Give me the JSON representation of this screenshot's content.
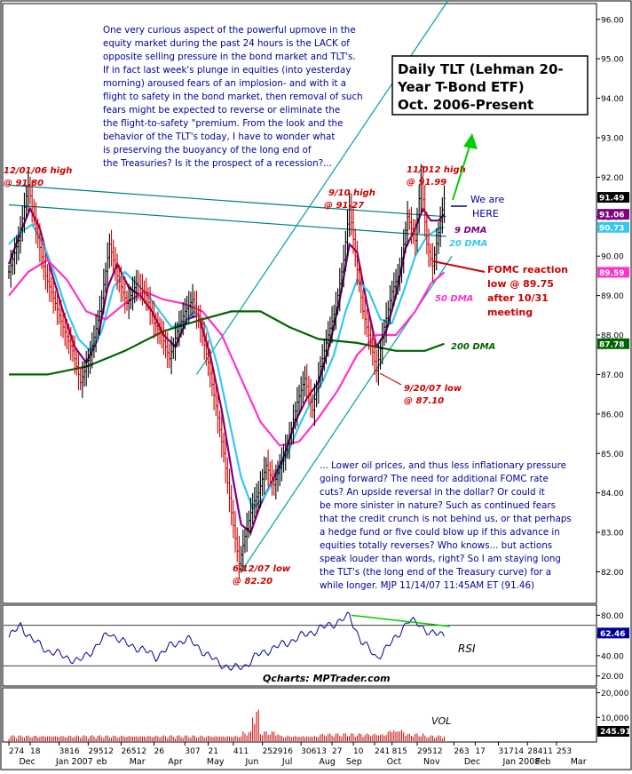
{
  "chart_data": {
    "type": "line",
    "title_box": {
      "lines": [
        "Daily TLT (Lehman 20-",
        "Year T-Bond ETF)",
        "Oct. 2006-Present"
      ]
    },
    "commentary_top": [
      "One very curious aspect of the powerful upmove in the",
      "equity market during the past 24 hours is the LACK of",
      "opposite selling pressure in the bond market and TLT's.",
      "If in fact last week's plunge in equities (into yesterday",
      "morning) aroused fears of an implosion- and with it a",
      "flight to safety in the bond market, then removal of such",
      "fears might be expected to reverse or eliminate the",
      "the flight-to-safety \"premium. From the look and the",
      "behavior of the TLT's today, I have to wonder what",
      "is preserving the buoyancy of the long end of",
      "the Treasuries? Is it the prospect of a recession?..."
    ],
    "commentary_bottom": [
      "... Lower oil prices, and thus less inflationary pressure",
      "going forward? The need for additional FOMC rate",
      "cuts?  An upside reversal in the dollar? Or could it",
      "be more sinister in nature? Such as continued fears",
      "that the credit crunch is not behind us, or that perhaps",
      "a hedge fund or five could blow up if this advance in",
      "equities totally reverses?  Who knows... but actions",
      "speak louder than words, right?  So I am staying long",
      "the TLT's (the long end of the Treasury curve) for a",
      "while longer.  MJP  11/14/07 11:45AM ET  (91.46)"
    ],
    "annotations": {
      "high_1201": [
        "12/01/06 high",
        "@ 91.80"
      ],
      "high_910": [
        "9/10 high",
        "@ 91.27"
      ],
      "high_1112": [
        "11/012 high",
        "@ 91.99"
      ],
      "we_are_here": [
        "We are",
        "HERE"
      ],
      "low_612": [
        "6/12/07 low",
        "@ 82.20"
      ],
      "low_920": [
        "9/20/07 low",
        "@ 87.10"
      ],
      "fomc": [
        "FOMC reaction",
        "low @ 89.75",
        "after 10/31",
        "meeting"
      ],
      "dma9": "9 DMA",
      "dma20": "20 DMA",
      "dma50": "50 DMA",
      "dma200": "200 DMA",
      "qcharts": "Qcharts: MPTrader.com",
      "rsi": "RSI",
      "vol": "VOL"
    },
    "price_axis": {
      "min": 81.2,
      "max": 96.4,
      "ticks": [
        "82.00",
        "83.00",
        "84.00",
        "85.00",
        "86.00",
        "87.00",
        "88.00",
        "89.00",
        "90.00",
        "91.00",
        "92.00",
        "93.00",
        "94.00",
        "95.00",
        "96.00"
      ],
      "value_badges": [
        {
          "label": "91.49",
          "value": 91.49,
          "color": "#000000"
        },
        {
          "label": "91.06",
          "value": 91.06,
          "color": "#800080"
        },
        {
          "label": "90.73",
          "value": 90.73,
          "color": "#33c8f0"
        },
        {
          "label": "89.59",
          "value": 89.59,
          "color": "#ff33cc"
        },
        {
          "label": "87.78",
          "value": 87.78,
          "color": "#006400"
        }
      ]
    },
    "rsi_axis": {
      "min": 10,
      "max": 90,
      "ticks": [
        "20.00",
        "40.00",
        "60.00",
        "80.00"
      ],
      "current": "62.46",
      "current_value": 62.46,
      "reference_lines": [
        70,
        30
      ]
    },
    "vol_axis": {
      "min": 0,
      "max": 22000,
      "ticks": [
        "10,000",
        "20,000"
      ],
      "current": "245.91"
    },
    "x_day_labels": [
      {
        "t": "274",
        "d": 0
      },
      {
        "t": "18",
        "d": 11
      },
      {
        "t": "3816",
        "d": 26
      },
      {
        "t": "29512",
        "d": 41
      },
      {
        "t": "26512",
        "d": 58
      },
      {
        "t": "26",
        "d": 75
      },
      {
        "t": "307",
        "d": 91
      },
      {
        "t": "21",
        "d": 103
      },
      {
        "t": "411",
        "d": 116
      },
      {
        "t": "252916",
        "d": 131
      },
      {
        "t": "30613",
        "d": 151
      },
      {
        "t": "27",
        "d": 167
      },
      {
        "t": "10",
        "d": 178
      },
      {
        "t": "241",
        "d": 189
      },
      {
        "t": "815",
        "d": 198
      },
      {
        "t": "29512",
        "d": 211
      },
      {
        "t": "263",
        "d": 230
      },
      {
        "t": "17",
        "d": 241
      },
      {
        "t": "31714",
        "d": 253
      },
      {
        "t": "28411",
        "d": 268
      },
      {
        "t": "253",
        "d": 283
      }
    ],
    "x_month_labels": [
      {
        "t": "Dec",
        "d": 8
      },
      {
        "t": "Jan 2007",
        "d": 27
      },
      {
        "t": "eb",
        "d": 48
      },
      {
        "t": "Mar",
        "d": 65
      },
      {
        "t": "Apr",
        "d": 85
      },
      {
        "t": "May",
        "d": 105
      },
      {
        "t": "Jun",
        "d": 125
      },
      {
        "t": "Jul",
        "d": 144
      },
      {
        "t": "Aug",
        "d": 163
      },
      {
        "t": "Sep",
        "d": 177
      },
      {
        "t": "Oct",
        "d": 198
      },
      {
        "t": "Nov",
        "d": 217
      },
      {
        "t": "Dec",
        "d": 238
      },
      {
        "t": "Jan 2008",
        "d": 258
      },
      {
        "t": "Feb",
        "d": 275
      },
      {
        "t": "Mar",
        "d": 293
      }
    ],
    "price_keypoints": [
      [
        0,
        89.6
      ],
      [
        5,
        90.4
      ],
      [
        10,
        91.8
      ],
      [
        14,
        90.7
      ],
      [
        19,
        89.5
      ],
      [
        24,
        88.8
      ],
      [
        28,
        88.2
      ],
      [
        33,
        87.6
      ],
      [
        37,
        86.8
      ],
      [
        42,
        87.5
      ],
      [
        47,
        88.6
      ],
      [
        52,
        90.3
      ],
      [
        56,
        89.5
      ],
      [
        61,
        88.8
      ],
      [
        66,
        89.3
      ],
      [
        71,
        89.0
      ],
      [
        75,
        88.3
      ],
      [
        79,
        88.0
      ],
      [
        83,
        87.4
      ],
      [
        87,
        88.1
      ],
      [
        91,
        88.6
      ],
      [
        95,
        88.9
      ],
      [
        99,
        88.2
      ],
      [
        103,
        87.3
      ],
      [
        107,
        86.2
      ],
      [
        111,
        85.0
      ],
      [
        115,
        83.5
      ],
      [
        119,
        82.2
      ],
      [
        122,
        82.9
      ],
      [
        126,
        83.7
      ],
      [
        129,
        84.0
      ],
      [
        133,
        84.7
      ],
      [
        137,
        84.2
      ],
      [
        141,
        84.8
      ],
      [
        145,
        85.4
      ],
      [
        149,
        86.3
      ],
      [
        153,
        86.9
      ],
      [
        157,
        86.1
      ],
      [
        161,
        87.2
      ],
      [
        165,
        88.0
      ],
      [
        169,
        88.7
      ],
      [
        173,
        89.9
      ],
      [
        176,
        91.27
      ],
      [
        179,
        90.0
      ],
      [
        183,
        88.6
      ],
      [
        187,
        87.8
      ],
      [
        190,
        87.1
      ],
      [
        194,
        88.2
      ],
      [
        198,
        89.1
      ],
      [
        202,
        89.6
      ],
      [
        206,
        91.0
      ],
      [
        210,
        90.4
      ],
      [
        213,
        91.99
      ],
      [
        216,
        90.3
      ],
      [
        219,
        89.75
      ],
      [
        222,
        90.6
      ],
      [
        225,
        91.46
      ]
    ],
    "rsi_keypoints": [
      [
        0,
        58
      ],
      [
        6,
        70
      ],
      [
        12,
        56
      ],
      [
        20,
        45
      ],
      [
        28,
        40
      ],
      [
        36,
        34
      ],
      [
        44,
        47
      ],
      [
        52,
        63
      ],
      [
        60,
        52
      ],
      [
        68,
        47
      ],
      [
        76,
        39
      ],
      [
        84,
        50
      ],
      [
        92,
        57
      ],
      [
        100,
        45
      ],
      [
        108,
        33
      ],
      [
        116,
        27
      ],
      [
        122,
        30
      ],
      [
        128,
        40
      ],
      [
        136,
        47
      ],
      [
        144,
        53
      ],
      [
        152,
        60
      ],
      [
        160,
        66
      ],
      [
        168,
        72
      ],
      [
        176,
        79
      ],
      [
        182,
        55
      ],
      [
        190,
        38
      ],
      [
        198,
        53
      ],
      [
        206,
        74
      ],
      [
        212,
        72
      ],
      [
        218,
        61
      ],
      [
        225,
        62
      ]
    ],
    "rsi_divergence": {
      "from": [
        177,
        80
      ],
      "to": [
        228,
        69
      ]
    },
    "moving_averages": [
      {
        "name": "9 DMA",
        "color": "#800080",
        "points": [
          [
            0,
            89.8
          ],
          [
            6,
            90.6
          ],
          [
            11,
            91.2
          ],
          [
            16,
            90.7
          ],
          [
            22,
            89.6
          ],
          [
            28,
            88.6
          ],
          [
            34,
            87.7
          ],
          [
            40,
            87.3
          ],
          [
            46,
            87.9
          ],
          [
            51,
            89.2
          ],
          [
            56,
            89.8
          ],
          [
            62,
            89.2
          ],
          [
            68,
            89.0
          ],
          [
            74,
            88.6
          ],
          [
            80,
            88.0
          ],
          [
            86,
            87.7
          ],
          [
            92,
            88.4
          ],
          [
            98,
            88.5
          ],
          [
            104,
            87.5
          ],
          [
            110,
            86.1
          ],
          [
            116,
            84.3
          ],
          [
            120,
            83.2
          ],
          [
            125,
            83.0
          ],
          [
            130,
            83.7
          ],
          [
            136,
            84.3
          ],
          [
            142,
            84.9
          ],
          [
            148,
            85.8
          ],
          [
            154,
            86.4
          ],
          [
            160,
            86.8
          ],
          [
            166,
            87.8
          ],
          [
            171,
            88.9
          ],
          [
            176,
            90.3
          ],
          [
            180,
            90.1
          ],
          [
            185,
            88.8
          ],
          [
            190,
            87.7
          ],
          [
            195,
            88.1
          ],
          [
            200,
            89.0
          ],
          [
            205,
            90.2
          ],
          [
            210,
            90.7
          ],
          [
            214,
            91.2
          ],
          [
            218,
            90.9
          ],
          [
            222,
            90.9
          ],
          [
            225,
            91.06
          ]
        ]
      },
      {
        "name": "20 DMA",
        "color": "#33c8f0",
        "points": [
          [
            0,
            90.3
          ],
          [
            6,
            90.6
          ],
          [
            12,
            90.8
          ],
          [
            18,
            90.3
          ],
          [
            24,
            89.5
          ],
          [
            30,
            88.6
          ],
          [
            36,
            87.9
          ],
          [
            42,
            87.6
          ],
          [
            48,
            88.1
          ],
          [
            54,
            89.2
          ],
          [
            60,
            89.6
          ],
          [
            66,
            89.3
          ],
          [
            72,
            89.0
          ],
          [
            78,
            88.6
          ],
          [
            84,
            88.2
          ],
          [
            90,
            88.3
          ],
          [
            96,
            88.6
          ],
          [
            102,
            88.2
          ],
          [
            108,
            87.2
          ],
          [
            114,
            85.8
          ],
          [
            120,
            84.4
          ],
          [
            126,
            83.6
          ],
          [
            132,
            83.9
          ],
          [
            138,
            84.4
          ],
          [
            144,
            85.0
          ],
          [
            150,
            85.7
          ],
          [
            156,
            86.3
          ],
          [
            162,
            86.8
          ],
          [
            168,
            87.5
          ],
          [
            174,
            88.6
          ],
          [
            180,
            89.4
          ],
          [
            186,
            89.1
          ],
          [
            192,
            88.4
          ],
          [
            198,
            88.3
          ],
          [
            204,
            89.1
          ],
          [
            210,
            90.0
          ],
          [
            216,
            90.5
          ],
          [
            222,
            90.7
          ],
          [
            225,
            90.73
          ]
        ]
      },
      {
        "name": "50 DMA",
        "color": "#ff33cc",
        "points": [
          [
            0,
            89.0
          ],
          [
            10,
            89.6
          ],
          [
            20,
            89.9
          ],
          [
            30,
            89.4
          ],
          [
            40,
            88.6
          ],
          [
            50,
            88.4
          ],
          [
            60,
            88.8
          ],
          [
            70,
            89.1
          ],
          [
            80,
            88.9
          ],
          [
            90,
            88.8
          ],
          [
            100,
            88.6
          ],
          [
            110,
            88.0
          ],
          [
            120,
            86.9
          ],
          [
            130,
            85.8
          ],
          [
            140,
            85.2
          ],
          [
            150,
            85.3
          ],
          [
            160,
            85.9
          ],
          [
            170,
            86.6
          ],
          [
            180,
            87.5
          ],
          [
            190,
            88.0
          ],
          [
            200,
            88.0
          ],
          [
            210,
            88.6
          ],
          [
            218,
            89.3
          ],
          [
            225,
            89.59
          ]
        ]
      },
      {
        "name": "200 DMA",
        "color": "#006400",
        "points": [
          [
            0,
            87.0
          ],
          [
            20,
            87.0
          ],
          [
            40,
            87.2
          ],
          [
            60,
            87.6
          ],
          [
            80,
            88.1
          ],
          [
            100,
            88.4
          ],
          [
            115,
            88.6
          ],
          [
            130,
            88.6
          ],
          [
            145,
            88.2
          ],
          [
            160,
            87.9
          ],
          [
            180,
            87.8
          ],
          [
            200,
            87.6
          ],
          [
            215,
            87.6
          ],
          [
            225,
            87.78
          ]
        ]
      }
    ],
    "trendlines": [
      {
        "color": "#008080",
        "from": [
          0,
          91.8
        ],
        "to": [
          226,
          91.0
        ]
      },
      {
        "color": "#008080",
        "from": [
          0,
          91.3
        ],
        "to": [
          226,
          90.5
        ]
      },
      {
        "color": "#00a0a0",
        "from": [
          97,
          87.0
        ],
        "to": [
          230,
          96.7
        ]
      },
      {
        "color": "#00a0a0",
        "from": [
          120,
          82.0
        ],
        "to": [
          229,
          90.0
        ]
      }
    ]
  },
  "colors": {
    "annotation_red": "#cc0000",
    "commentary_blue": "#000099",
    "arrow_green": "#00cc00",
    "fomc_red": "#cc0000",
    "here_blue": "#000099"
  }
}
